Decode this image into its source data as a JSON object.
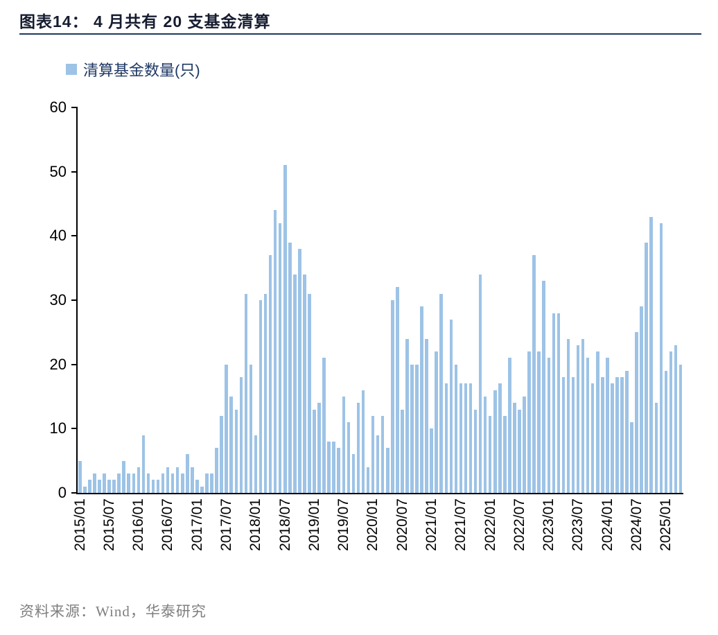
{
  "title": "图表14： 4 月共有 20 支基金清算",
  "legend": {
    "label": "清算基金数量(只)"
  },
  "footer": "资料来源：Wind，华泰研究",
  "colors": {
    "bar": "#9DC3E6",
    "title": "#161C30",
    "rule": "#1F3864",
    "legend_text": "#1F3864",
    "axis": "#000000",
    "tick_label": "#000000",
    "footer": "#7F7F7F",
    "background": "#FFFFFF"
  },
  "chart_data": {
    "type": "bar",
    "title": "清算基金数量(只)",
    "ylabel": "",
    "xlabel": "",
    "ylim": [
      0,
      60
    ],
    "yticks": [
      0,
      10,
      20,
      30,
      40,
      50,
      60
    ],
    "grid": false,
    "legend_position": "top-left",
    "xtick_every": 6,
    "x_tick_labels": [
      "2015/01",
      "2015/07",
      "2016/01",
      "2016/07",
      "2017/01",
      "2017/07",
      "2018/01",
      "2018/07",
      "2019/01",
      "2019/07",
      "2020/01",
      "2020/07",
      "2021/01",
      "2021/07",
      "2022/01",
      "2022/07",
      "2023/01",
      "2023/07",
      "2024/01",
      "2024/07",
      "2025/01"
    ],
    "x": [
      "2015/01",
      "2015/02",
      "2015/03",
      "2015/04",
      "2015/05",
      "2015/06",
      "2015/07",
      "2015/08",
      "2015/09",
      "2015/10",
      "2015/11",
      "2015/12",
      "2016/01",
      "2016/02",
      "2016/03",
      "2016/04",
      "2016/05",
      "2016/06",
      "2016/07",
      "2016/08",
      "2016/09",
      "2016/10",
      "2016/11",
      "2016/12",
      "2017/01",
      "2017/02",
      "2017/03",
      "2017/04",
      "2017/05",
      "2017/06",
      "2017/07",
      "2017/08",
      "2017/09",
      "2017/10",
      "2017/11",
      "2017/12",
      "2018/01",
      "2018/02",
      "2018/03",
      "2018/04",
      "2018/05",
      "2018/06",
      "2018/07",
      "2018/08",
      "2018/09",
      "2018/10",
      "2018/11",
      "2018/12",
      "2019/01",
      "2019/02",
      "2019/03",
      "2019/04",
      "2019/05",
      "2019/06",
      "2019/07",
      "2019/08",
      "2019/09",
      "2019/10",
      "2019/11",
      "2019/12",
      "2020/01",
      "2020/02",
      "2020/03",
      "2020/04",
      "2020/05",
      "2020/06",
      "2020/07",
      "2020/08",
      "2020/09",
      "2020/10",
      "2020/11",
      "2020/12",
      "2021/01",
      "2021/02",
      "2021/03",
      "2021/04",
      "2021/05",
      "2021/06",
      "2021/07",
      "2021/08",
      "2021/09",
      "2021/10",
      "2021/11",
      "2021/12",
      "2022/01",
      "2022/02",
      "2022/03",
      "2022/04",
      "2022/05",
      "2022/06",
      "2022/07",
      "2022/08",
      "2022/09",
      "2022/10",
      "2022/11",
      "2022/12",
      "2023/01",
      "2023/02",
      "2023/03",
      "2023/04",
      "2023/05",
      "2023/06",
      "2023/07",
      "2023/08",
      "2023/09",
      "2023/10",
      "2023/11",
      "2023/12",
      "2024/01",
      "2024/02",
      "2024/03",
      "2024/04",
      "2024/05",
      "2024/06",
      "2024/07",
      "2024/08",
      "2024/09",
      "2024/10",
      "2024/11",
      "2024/12",
      "2025/01",
      "2025/02",
      "2025/03",
      "2025/04"
    ],
    "values": [
      5,
      1,
      2,
      3,
      2,
      3,
      2,
      2,
      3,
      5,
      3,
      3,
      4,
      9,
      3,
      2,
      2,
      3,
      4,
      3,
      4,
      3,
      6,
      4,
      2,
      1,
      3,
      3,
      7,
      12,
      20,
      15,
      13,
      18,
      31,
      20,
      9,
      30,
      31,
      37,
      44,
      42,
      51,
      39,
      34,
      38,
      34,
      31,
      13,
      14,
      21,
      8,
      8,
      7,
      15,
      11,
      6,
      14,
      16,
      4,
      12,
      9,
      12,
      7,
      30,
      32,
      13,
      24,
      20,
      20,
      29,
      24,
      10,
      22,
      31,
      17,
      27,
      20,
      17,
      17,
      17,
      13,
      34,
      15,
      12,
      16,
      17,
      12,
      21,
      14,
      13,
      15,
      22,
      37,
      22,
      33,
      21,
      28,
      28,
      18,
      24,
      18,
      23,
      24,
      21,
      17,
      22,
      18,
      21,
      17,
      18,
      18,
      19,
      11,
      25,
      29,
      39,
      43,
      14,
      42,
      19,
      22,
      23,
      20
    ]
  }
}
